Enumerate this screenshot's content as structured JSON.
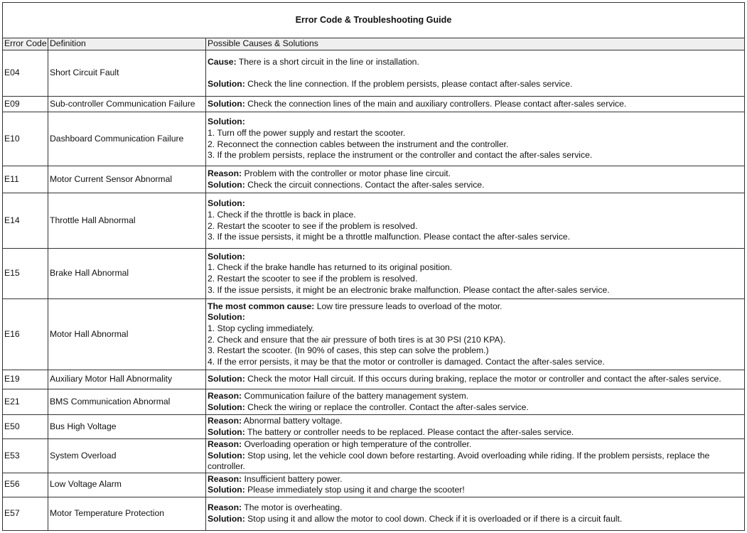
{
  "title": "Error Code & Troubleshooting Guide",
  "headers": {
    "code": "Error Code",
    "definition": "Definition",
    "causes": "Possible Causes & Solutions"
  },
  "rows": [
    {
      "code": "E04",
      "definition": "Short Circuit Fault",
      "lines": [
        {
          "b": "Cause:",
          "t": " There is a short circuit in the line or installation."
        },
        {
          "gap": true
        },
        {
          "b": "Solution:",
          "t": " Check the line connection. If the problem persists, please contact after-sales service."
        }
      ]
    },
    {
      "code": "E09",
      "definition": "Sub-controller Communication Failure",
      "lines": [
        {
          "b": "Solution:",
          "t": " Check the connection lines of the main and auxiliary controllers. Please contact after-sales service."
        }
      ]
    },
    {
      "code": "E10",
      "definition": "Dashboard Communication Failure",
      "lines": [
        {
          "b": "Solution:",
          "t": ""
        },
        {
          "t": "1. Turn off the power supply and restart the scooter."
        },
        {
          "t": "2. Reconnect the connection cables between the instrument and the controller."
        },
        {
          "t": "3. If the problem persists, replace the instrument or the controller and contact the after-sales service."
        }
      ]
    },
    {
      "code": "E11",
      "definition": "Motor Current Sensor Abnormal",
      "lines": [
        {
          "b": "Reason:",
          "t": " Problem with the controller or motor phase line circuit."
        },
        {
          "b": "Solution:",
          "t": " Check the circuit connections. Contact the after-sales service."
        }
      ]
    },
    {
      "code": "E14",
      "definition": "Throttle Hall Abnormal",
      "lines": [
        {
          "b": "Solution:",
          "t": ""
        },
        {
          "t": "1. Check if the throttle is back in place."
        },
        {
          "t": "2. Restart the scooter to see if the problem is resolved."
        },
        {
          "t": "3. If the issue persists, it might be a throttle malfunction. Please contact the after-sales service."
        }
      ]
    },
    {
      "code": "E15",
      "definition": "Brake Hall Abnormal",
      "lines": [
        {
          "b": "Solution:",
          "t": ""
        },
        {
          "t": "1. Check if the brake handle has returned to its original position."
        },
        {
          "t": "2. Restart the scooter to see if the problem is resolved."
        },
        {
          "t": "3. If the issue persists, it might be an electronic brake malfunction. Please contact the after-sales service."
        }
      ]
    },
    {
      "code": "E16",
      "definition": "Motor Hall Abnormal",
      "lines": [
        {
          "b": "The most common cause:",
          "t": " Low tire pressure leads to overload of the motor."
        },
        {
          "b": "Solution:",
          "t": ""
        },
        {
          "t": "1. Stop cycling immediately."
        },
        {
          "t": "2. Check and ensure that the air pressure of both tires is at 30 PSI (210 KPA)."
        },
        {
          "t": "3. Restart the scooter. (In 90% of cases, this step can solve the problem.)"
        },
        {
          "t": "4. If the error persists, it may be that the motor or controller is damaged. Contact the after-sales service."
        }
      ]
    },
    {
      "code": "E19",
      "definition": "Auxiliary Motor Hall Abnormality",
      "lines": [
        {
          "b": "Solution:",
          "t": " Check the motor Hall circuit. If this occurs during braking, replace the motor or controller and contact the after-sales service."
        }
      ]
    },
    {
      "code": "E21",
      "definition": "BMS Communication Abnormal",
      "lines": [
        {
          "b": "Reason:",
          "t": " Communication failure of the battery management system."
        },
        {
          "b": "Solution:",
          "t": " Check the wiring or replace the controller. Contact the after-sales service."
        }
      ]
    },
    {
      "code": "E50",
      "definition": "Bus High Voltage",
      "lines": [
        {
          "b": "Reason:",
          "t": " Abnormal battery voltage."
        },
        {
          "b": "Solution:",
          "t": " The battery or controller needs to be replaced. Please contact the after-sales service."
        }
      ]
    },
    {
      "code": "E53",
      "definition": "System Overload",
      "lines": [
        {
          "b": "Reason:",
          "t": " Overloading operation or high temperature of the controller."
        },
        {
          "b": "Solution:",
          "t": " Stop using, let the vehicle cool down before restarting. Avoid overloading while riding. If the problem persists, replace the controller."
        }
      ]
    },
    {
      "code": "E56",
      "definition": "Low Voltage Alarm",
      "lines": [
        {
          "b": "Reason:",
          "t": " Insufficient battery power."
        },
        {
          "b": "Solution:",
          "t": " Please immediately stop using it and charge the scooter!"
        }
      ]
    },
    {
      "code": "E57",
      "definition": "Motor Temperature Protection",
      "lines": [
        {
          "b": "Reason:",
          "t": " The motor is overheating."
        },
        {
          "b": "Solution:",
          "t": " Stop using it and allow the motor to cool down. Check if it is overloaded or if there is a circuit fault."
        }
      ]
    }
  ]
}
